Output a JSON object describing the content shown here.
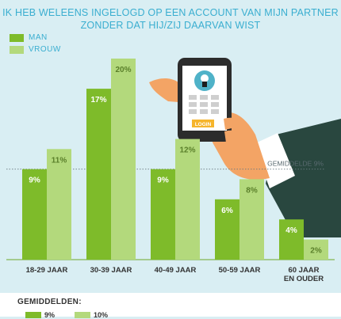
{
  "title_line1": "IK HEB WELEENS INGELOGD OP EEN ACCOUNT VAN MIJN PARTNER",
  "title_line2": "ZONDER DAT HIJ/ZIJ DAARVAN WIST",
  "phone_button_label": "LOGIN",
  "averages": {
    "heading": "GEMIDDELDEN:",
    "man": "9%",
    "vrouw": "10%"
  },
  "colors": {
    "man": "#7ebb2a",
    "vrouw": "#b3d97c",
    "background": "#d9eef3",
    "title": "#3aaed0",
    "sleeve": "#29473f",
    "skin": "#f3a465",
    "phone": "#2c2c2c",
    "login": "#f6b52c"
  },
  "chart_data": {
    "type": "bar",
    "title": "IK HEB WELEENS INGELOGD OP EEN ACCOUNT VAN MIJN PARTNER ZONDER DAT HIJ/ZIJ DAARVAN WIST",
    "categories": [
      "18-29 JAAR",
      "30-39 JAAR",
      "40-49 JAAR",
      "50-59 JAAR",
      "60 JAAR\nEN OUDER"
    ],
    "series": [
      {
        "name": "MAN",
        "values": [
          9,
          17,
          9,
          6,
          4
        ],
        "labels": [
          "9%",
          "17%",
          "9%",
          "6%",
          "4%"
        ]
      },
      {
        "name": "VROUW",
        "values": [
          11,
          20,
          12,
          8,
          2
        ],
        "labels": [
          "11%",
          "20%",
          "12%",
          "8%",
          "2%"
        ]
      }
    ],
    "reference_line": {
      "value": 9,
      "label": "GEMIDDELDE 9%"
    },
    "ylim": [
      0,
      20
    ],
    "grid": false,
    "legend": "top-left"
  }
}
